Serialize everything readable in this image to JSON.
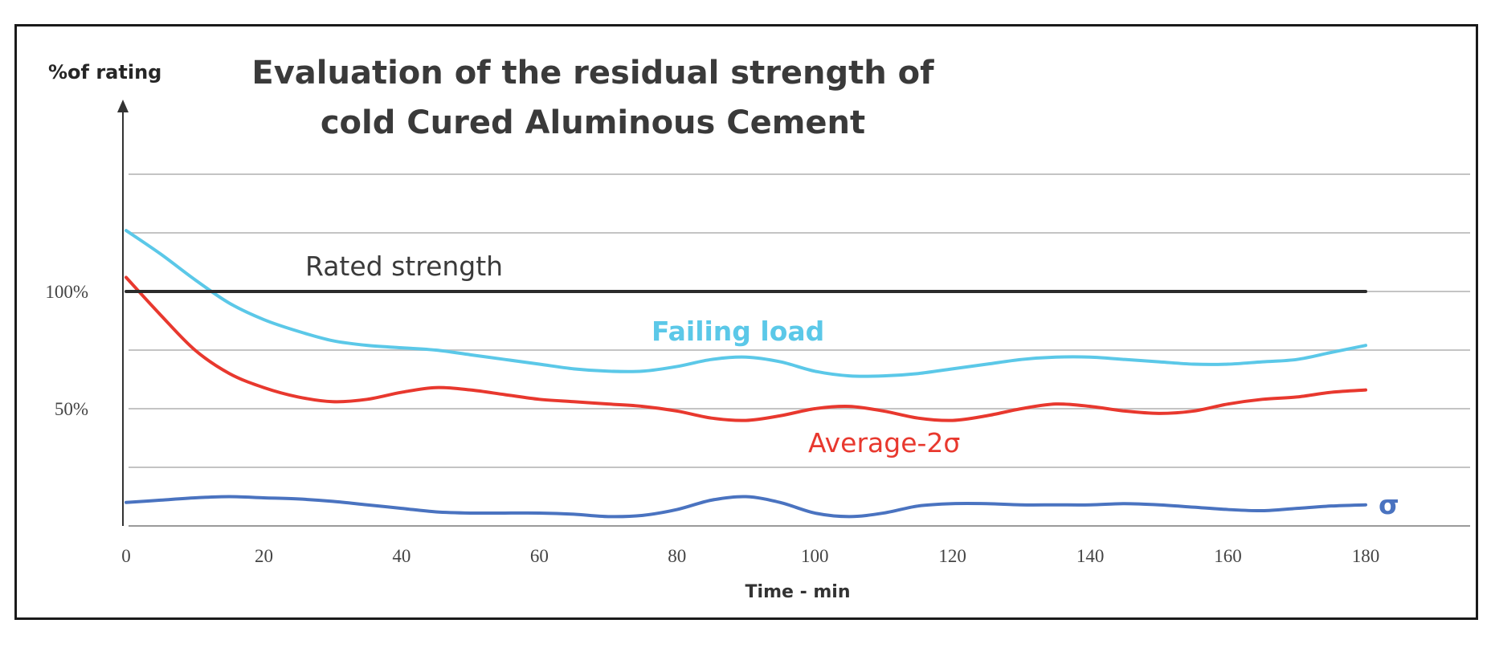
{
  "chart_data": {
    "type": "line",
    "title_lines": [
      "Evaluation of the residual strength of",
      "cold Cured Aluminous Cement"
    ],
    "ylabel": "%of rating",
    "xlabel": "Time - min",
    "x_ticks": [
      0,
      20,
      40,
      60,
      80,
      100,
      120,
      140,
      160,
      180
    ],
    "xlim": [
      0,
      180
    ],
    "y_ticks": [
      {
        "value": 50,
        "label": "50%"
      },
      {
        "value": 100,
        "label": "100%"
      }
    ],
    "gridlines_y": [
      0,
      25,
      50,
      75,
      100,
      125,
      150
    ],
    "ylim": [
      0,
      150
    ],
    "grid": true,
    "series": [
      {
        "name": "Rated strength",
        "color": "#2b2b2b",
        "label_pos": "above-line",
        "points": [
          [
            0,
            100
          ],
          [
            180,
            100
          ]
        ]
      },
      {
        "name": "Failing load",
        "color": "#5bc8e8",
        "points": [
          [
            0,
            126
          ],
          [
            5,
            116
          ],
          [
            10,
            105
          ],
          [
            15,
            95
          ],
          [
            20,
            88
          ],
          [
            25,
            83
          ],
          [
            30,
            79
          ],
          [
            35,
            77
          ],
          [
            40,
            76
          ],
          [
            45,
            75
          ],
          [
            50,
            73
          ],
          [
            55,
            71
          ],
          [
            60,
            69
          ],
          [
            65,
            67
          ],
          [
            70,
            66
          ],
          [
            75,
            66
          ],
          [
            80,
            68
          ],
          [
            85,
            71
          ],
          [
            90,
            72
          ],
          [
            95,
            70
          ],
          [
            100,
            66
          ],
          [
            105,
            64
          ],
          [
            110,
            64
          ],
          [
            115,
            65
          ],
          [
            120,
            67
          ],
          [
            125,
            69
          ],
          [
            130,
            71
          ],
          [
            135,
            72
          ],
          [
            140,
            72
          ],
          [
            145,
            71
          ],
          [
            150,
            70
          ],
          [
            155,
            69
          ],
          [
            160,
            69
          ],
          [
            165,
            70
          ],
          [
            170,
            71
          ],
          [
            175,
            74
          ],
          [
            180,
            77
          ]
        ]
      },
      {
        "name": "Average-2σ",
        "color": "#e8382e",
        "points": [
          [
            0,
            106
          ],
          [
            5,
            90
          ],
          [
            10,
            75
          ],
          [
            15,
            65
          ],
          [
            20,
            59
          ],
          [
            25,
            55
          ],
          [
            30,
            53
          ],
          [
            35,
            54
          ],
          [
            40,
            57
          ],
          [
            45,
            59
          ],
          [
            50,
            58
          ],
          [
            55,
            56
          ],
          [
            60,
            54
          ],
          [
            65,
            53
          ],
          [
            70,
            52
          ],
          [
            75,
            51
          ],
          [
            80,
            49
          ],
          [
            85,
            46
          ],
          [
            90,
            45
          ],
          [
            95,
            47
          ],
          [
            100,
            50
          ],
          [
            105,
            51
          ],
          [
            110,
            49
          ],
          [
            115,
            46
          ],
          [
            120,
            45
          ],
          [
            125,
            47
          ],
          [
            130,
            50
          ],
          [
            135,
            52
          ],
          [
            140,
            51
          ],
          [
            145,
            49
          ],
          [
            150,
            48
          ],
          [
            155,
            49
          ],
          [
            160,
            52
          ],
          [
            165,
            54
          ],
          [
            170,
            55
          ],
          [
            175,
            57
          ],
          [
            180,
            58
          ]
        ]
      },
      {
        "name": "σ",
        "color": "#4a73c0",
        "points": [
          [
            0,
            10
          ],
          [
            5,
            11
          ],
          [
            10,
            12
          ],
          [
            15,
            12.5
          ],
          [
            20,
            12
          ],
          [
            25,
            11.5
          ],
          [
            30,
            10.5
          ],
          [
            35,
            9
          ],
          [
            40,
            7.5
          ],
          [
            45,
            6
          ],
          [
            50,
            5.5
          ],
          [
            55,
            5.5
          ],
          [
            60,
            5.5
          ],
          [
            65,
            5
          ],
          [
            70,
            4
          ],
          [
            75,
            4.5
          ],
          [
            80,
            7
          ],
          [
            85,
            11
          ],
          [
            90,
            12.5
          ],
          [
            95,
            10
          ],
          [
            100,
            5.5
          ],
          [
            105,
            4
          ],
          [
            110,
            5.5
          ],
          [
            115,
            8.5
          ],
          [
            120,
            9.5
          ],
          [
            125,
            9.5
          ],
          [
            130,
            9
          ],
          [
            135,
            9
          ],
          [
            140,
            9
          ],
          [
            145,
            9.5
          ],
          [
            150,
            9
          ],
          [
            155,
            8
          ],
          [
            160,
            7
          ],
          [
            165,
            6.5
          ],
          [
            170,
            7.5
          ],
          [
            175,
            8.5
          ],
          [
            180,
            9
          ]
        ]
      }
    ]
  }
}
